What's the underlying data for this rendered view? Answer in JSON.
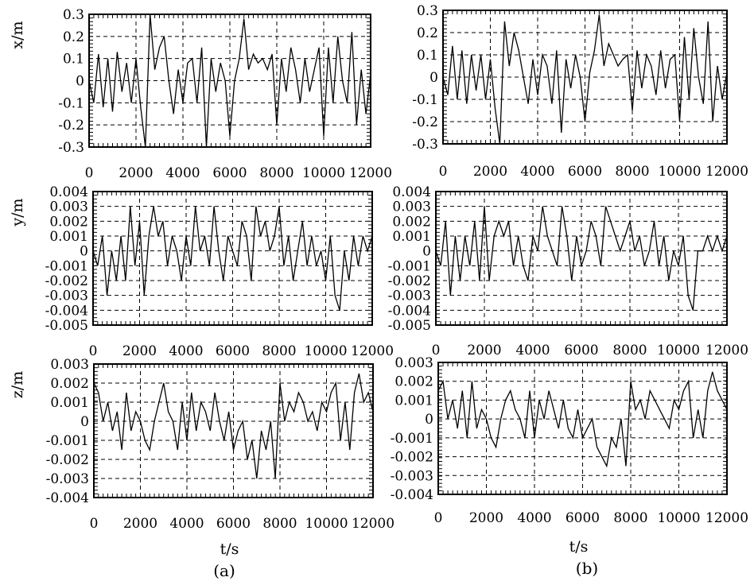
{
  "chart_data": [
    {
      "type": "line",
      "panel": "(a)",
      "ylabel": "x/m",
      "xlabel": "",
      "xlim": [
        0,
        12000
      ],
      "ylim": [
        -0.3,
        0.3
      ],
      "xticks": [
        "0",
        "2000",
        "4000",
        "6000",
        "8000",
        "10000",
        "12000"
      ],
      "yticks": [
        "0.3",
        "0.2",
        "0.1",
        "0",
        "-0.1",
        "-0.2",
        "-0.3"
      ],
      "series": [
        {
          "x": [
            0,
            200,
            400,
            600,
            800,
            1000,
            1200,
            1400,
            1600,
            1800,
            2000,
            2200,
            2400,
            2600,
            2800,
            3000,
            3200,
            3400,
            3600,
            3800,
            4000,
            4200,
            4400,
            4600,
            4800,
            5000,
            5200,
            5400,
            5600,
            5800,
            6000,
            6200,
            6400,
            6600,
            6800,
            7000,
            7200,
            7400,
            7600,
            7800,
            8000,
            8200,
            8400,
            8600,
            8800,
            9000,
            9200,
            9400,
            9600,
            9800,
            10000,
            10200,
            10400,
            10600,
            10800,
            11000,
            11200,
            11400,
            11600,
            11800,
            12000
          ],
          "values": [
            0.0,
            -0.1,
            0.12,
            -0.12,
            0.1,
            -0.14,
            0.13,
            -0.05,
            0.08,
            -0.1,
            0.1,
            -0.12,
            -0.3,
            0.3,
            0.05,
            0.15,
            0.2,
            0.0,
            -0.15,
            0.05,
            -0.1,
            0.08,
            0.1,
            -0.1,
            0.15,
            -0.3,
            0.1,
            -0.05,
            0.08,
            0.0,
            -0.25,
            0.0,
            0.1,
            0.28,
            0.05,
            0.12,
            0.08,
            0.1,
            0.05,
            0.12,
            -0.2,
            0.1,
            -0.05,
            0.15,
            0.05,
            -0.1,
            0.1,
            -0.05,
            0.05,
            0.15,
            -0.25,
            0.15,
            -0.1,
            0.2,
            0.0,
            -0.1,
            0.22,
            -0.2,
            0.05,
            -0.15,
            0.03
          ]
        }
      ]
    },
    {
      "type": "line",
      "panel": "(b)",
      "ylabel": "",
      "xlabel": "",
      "xlim": [
        0,
        12000
      ],
      "ylim": [
        -0.3,
        0.3
      ],
      "xticks": [
        "0",
        "2000",
        "4000",
        "6000",
        "8000",
        "10000",
        "12000"
      ],
      "yticks": [
        "0.3",
        "0.2",
        "0.1",
        "0",
        "-0.1",
        "-0.2",
        "-0.3"
      ],
      "series": [
        {
          "x": [
            0,
            200,
            400,
            600,
            800,
            1000,
            1200,
            1400,
            1600,
            1800,
            2000,
            2200,
            2400,
            2600,
            2800,
            3000,
            3200,
            3400,
            3600,
            3800,
            4000,
            4200,
            4400,
            4600,
            4800,
            5000,
            5200,
            5400,
            5600,
            5800,
            6000,
            6200,
            6400,
            6600,
            6800,
            7000,
            7200,
            7400,
            7600,
            7800,
            8000,
            8200,
            8400,
            8600,
            8800,
            9000,
            9200,
            9400,
            9600,
            9800,
            10000,
            10200,
            10400,
            10600,
            10800,
            11000,
            11200,
            11400,
            11600,
            11800,
            12000
          ],
          "values": [
            0.0,
            -0.08,
            0.14,
            -0.1,
            0.12,
            -0.12,
            0.1,
            -0.06,
            0.1,
            -0.1,
            0.08,
            -0.14,
            -0.3,
            0.25,
            0.05,
            0.2,
            0.12,
            0.0,
            -0.12,
            0.08,
            -0.08,
            0.1,
            0.05,
            -0.12,
            0.12,
            -0.25,
            0.08,
            -0.05,
            0.1,
            0.0,
            -0.2,
            0.02,
            0.12,
            0.28,
            0.05,
            0.15,
            0.1,
            0.05,
            0.08,
            0.1,
            -0.15,
            0.12,
            -0.05,
            0.1,
            0.05,
            -0.08,
            0.12,
            -0.05,
            0.08,
            0.1,
            -0.2,
            0.18,
            -0.1,
            0.22,
            0.0,
            -0.12,
            0.25,
            -0.2,
            0.05,
            -0.1,
            0.02
          ]
        }
      ]
    },
    {
      "type": "line",
      "panel": "(a)",
      "ylabel": "y/m",
      "xlabel": "",
      "xlim": [
        0,
        12000
      ],
      "ylim": [
        -0.005,
        0.004
      ],
      "xticks": [
        "0",
        "2000",
        "4000",
        "6000",
        "8000",
        "10000",
        "12000"
      ],
      "yticks": [
        "0.004",
        "0.003",
        "0.002",
        "0.001",
        "0",
        "-0.001",
        "-0.002",
        "-0.003",
        "-0.004",
        "-0.005"
      ],
      "series": [
        {
          "x": [
            0,
            200,
            400,
            600,
            800,
            1000,
            1200,
            1400,
            1600,
            1800,
            2000,
            2200,
            2400,
            2600,
            2800,
            3000,
            3200,
            3400,
            3600,
            3800,
            4000,
            4200,
            4400,
            4600,
            4800,
            5000,
            5200,
            5400,
            5600,
            5800,
            6000,
            6200,
            6400,
            6600,
            6800,
            7000,
            7200,
            7400,
            7600,
            7800,
            8000,
            8200,
            8400,
            8600,
            8800,
            9000,
            9200,
            9400,
            9600,
            9800,
            10000,
            10200,
            10400,
            10600,
            10800,
            11000,
            11200,
            11400,
            11600,
            11800,
            12000
          ],
          "values": [
            0.0,
            -0.001,
            0.001,
            -0.003,
            0.0,
            -0.002,
            0.001,
            -0.002,
            0.003,
            -0.001,
            0.002,
            -0.003,
            0.001,
            0.003,
            0.001,
            0.002,
            -0.001,
            0.001,
            0.0,
            -0.002,
            0.001,
            -0.001,
            0.003,
            0.0,
            0.001,
            -0.001,
            0.003,
            0.0,
            -0.002,
            0.001,
            0.0,
            -0.001,
            0.002,
            0.001,
            -0.002,
            0.003,
            0.001,
            0.002,
            0.0,
            0.001,
            0.003,
            -0.001,
            0.001,
            -0.002,
            0.0,
            0.002,
            -0.001,
            0.001,
            -0.001,
            0.0,
            -0.002,
            0.001,
            -0.003,
            -0.004,
            0.0,
            -0.002,
            0.001,
            -0.001,
            0.001,
            0.0,
            0.001
          ]
        }
      ]
    },
    {
      "type": "line",
      "panel": "(b)",
      "ylabel": "",
      "xlabel": "",
      "xlim": [
        0,
        12000
      ],
      "ylim": [
        -0.005,
        0.004
      ],
      "xticks": [
        "0",
        "2000",
        "4000",
        "6000",
        "8000",
        "10000",
        "12000"
      ],
      "yticks": [
        "0.004",
        "0.003",
        "0.002",
        "0.001",
        "0",
        "-0.001",
        "-0.002",
        "-0.003",
        "-0.004",
        "-0.005"
      ],
      "series": [
        {
          "x": [
            0,
            200,
            400,
            600,
            800,
            1000,
            1200,
            1400,
            1600,
            1800,
            2000,
            2200,
            2400,
            2600,
            2800,
            3000,
            3200,
            3400,
            3600,
            3800,
            4000,
            4200,
            4400,
            4600,
            4800,
            5000,
            5200,
            5400,
            5600,
            5800,
            6000,
            6200,
            6400,
            6600,
            6800,
            7000,
            7200,
            7400,
            7600,
            7800,
            8000,
            8200,
            8400,
            8600,
            8800,
            9000,
            9200,
            9400,
            9600,
            9800,
            10000,
            10200,
            10400,
            10600,
            10800,
            11000,
            11200,
            11400,
            11600,
            11800,
            12000
          ],
          "values": [
            0.0,
            -0.001,
            0.002,
            -0.003,
            0.001,
            -0.002,
            0.001,
            -0.001,
            0.002,
            -0.002,
            0.003,
            -0.002,
            0.001,
            0.002,
            0.001,
            0.002,
            -0.001,
            0.001,
            -0.001,
            -0.002,
            0.001,
            0.0,
            0.003,
            0.001,
            0.0,
            -0.001,
            0.003,
            0.001,
            -0.002,
            0.001,
            -0.001,
            0.0,
            0.002,
            0.001,
            -0.001,
            0.003,
            0.002,
            0.001,
            0.0,
            0.001,
            0.002,
            0.0,
            0.001,
            -0.001,
            0.0,
            0.002,
            -0.001,
            0.001,
            -0.002,
            0.0,
            -0.001,
            0.001,
            -0.003,
            -0.004,
            0.0,
            0.0,
            0.001,
            0.0,
            0.001,
            0.0,
            0.001
          ]
        }
      ]
    },
    {
      "type": "line",
      "panel": "(a)",
      "ylabel": "z/m",
      "xlabel": "t/s",
      "xlim": [
        0,
        12000
      ],
      "ylim": [
        -0.004,
        0.003
      ],
      "xticks": [
        "0",
        "2000",
        "4000",
        "6000",
        "8000",
        "10000",
        "12000"
      ],
      "yticks": [
        "0.003",
        "0.002",
        "0.001",
        "0",
        "-0.001",
        "-0.002",
        "-0.003",
        "-0.004"
      ],
      "series": [
        {
          "x": [
            0,
            200,
            400,
            600,
            800,
            1000,
            1200,
            1400,
            1600,
            1800,
            2000,
            2200,
            2400,
            2600,
            2800,
            3000,
            3200,
            3400,
            3600,
            3800,
            4000,
            4200,
            4400,
            4600,
            4800,
            5000,
            5200,
            5400,
            5600,
            5800,
            6000,
            6200,
            6400,
            6600,
            6800,
            7000,
            7200,
            7400,
            7600,
            7800,
            8000,
            8200,
            8400,
            8600,
            8800,
            9000,
            9200,
            9400,
            9600,
            9800,
            10000,
            10200,
            10400,
            10600,
            10800,
            11000,
            11200,
            11400,
            11600,
            11800,
            12000
          ],
          "values": [
            0.002,
            0.0015,
            0.0,
            0.001,
            -0.0005,
            0.0005,
            -0.0015,
            0.0015,
            -0.0005,
            0.0005,
            0.0,
            -0.001,
            -0.0015,
            0.0,
            0.001,
            0.002,
            0.0005,
            0.0,
            -0.0015,
            0.001,
            -0.001,
            0.0015,
            -0.0005,
            0.001,
            0.0005,
            -0.0005,
            0.0015,
            0.0,
            -0.001,
            0.0005,
            -0.0015,
            -0.0005,
            0.0,
            -0.002,
            -0.001,
            -0.003,
            -0.0005,
            -0.0015,
            0.0,
            -0.003,
            0.002,
            0.0,
            0.001,
            0.0005,
            0.0015,
            0.001,
            0.0,
            0.0005,
            -0.0005,
            0.001,
            0.0005,
            0.0015,
            0.002,
            -0.001,
            0.001,
            -0.0015,
            0.0015,
            0.0025,
            0.001,
            0.0015,
            0.0005
          ]
        }
      ]
    },
    {
      "type": "line",
      "panel": "(b)",
      "ylabel": "",
      "xlabel": "t/s",
      "xlim": [
        0,
        12000
      ],
      "ylim": [
        -0.004,
        0.003
      ],
      "xticks": [
        "0",
        "2000",
        "4000",
        "6000",
        "8000",
        "10000",
        "12000"
      ],
      "yticks": [
        "0.003",
        "0.002",
        "0.001",
        "0",
        "-0.001",
        "-0.002",
        "-0.003",
        "-0.004"
      ],
      "series": [
        {
          "x": [
            0,
            200,
            400,
            600,
            800,
            1000,
            1200,
            1400,
            1600,
            1800,
            2000,
            2200,
            2400,
            2600,
            2800,
            3000,
            3200,
            3400,
            3600,
            3800,
            4000,
            4200,
            4400,
            4600,
            4800,
            5000,
            5200,
            5400,
            5600,
            5800,
            6000,
            6200,
            6400,
            6600,
            6800,
            7000,
            7200,
            7400,
            7600,
            7800,
            8000,
            8200,
            8400,
            8600,
            8800,
            9000,
            9200,
            9400,
            9600,
            9800,
            10000,
            10200,
            10400,
            10600,
            10800,
            11000,
            11200,
            11400,
            11600,
            11800,
            12000
          ],
          "values": [
            0.0015,
            0.002,
            0.0,
            0.001,
            -0.0005,
            0.0015,
            -0.001,
            0.002,
            -0.0005,
            0.0005,
            0.0,
            -0.001,
            -0.0015,
            0.0,
            0.001,
            0.0015,
            0.0005,
            0.0,
            -0.001,
            0.0015,
            -0.001,
            0.001,
            0.0,
            0.0015,
            0.0005,
            -0.0005,
            0.001,
            -0.0005,
            -0.001,
            0.0005,
            -0.001,
            -0.0005,
            0.0,
            -0.0015,
            -0.002,
            -0.0025,
            -0.001,
            -0.0015,
            0.0,
            -0.0025,
            0.002,
            0.0005,
            0.001,
            0.0,
            0.0015,
            0.001,
            0.0005,
            0.0,
            -0.0005,
            0.001,
            0.0005,
            0.0015,
            0.002,
            -0.001,
            0.0005,
            -0.001,
            0.0015,
            0.0025,
            0.0015,
            0.001,
            0.0005
          ]
        }
      ]
    }
  ],
  "captions": {
    "a": "(a)",
    "b": "(b)"
  }
}
